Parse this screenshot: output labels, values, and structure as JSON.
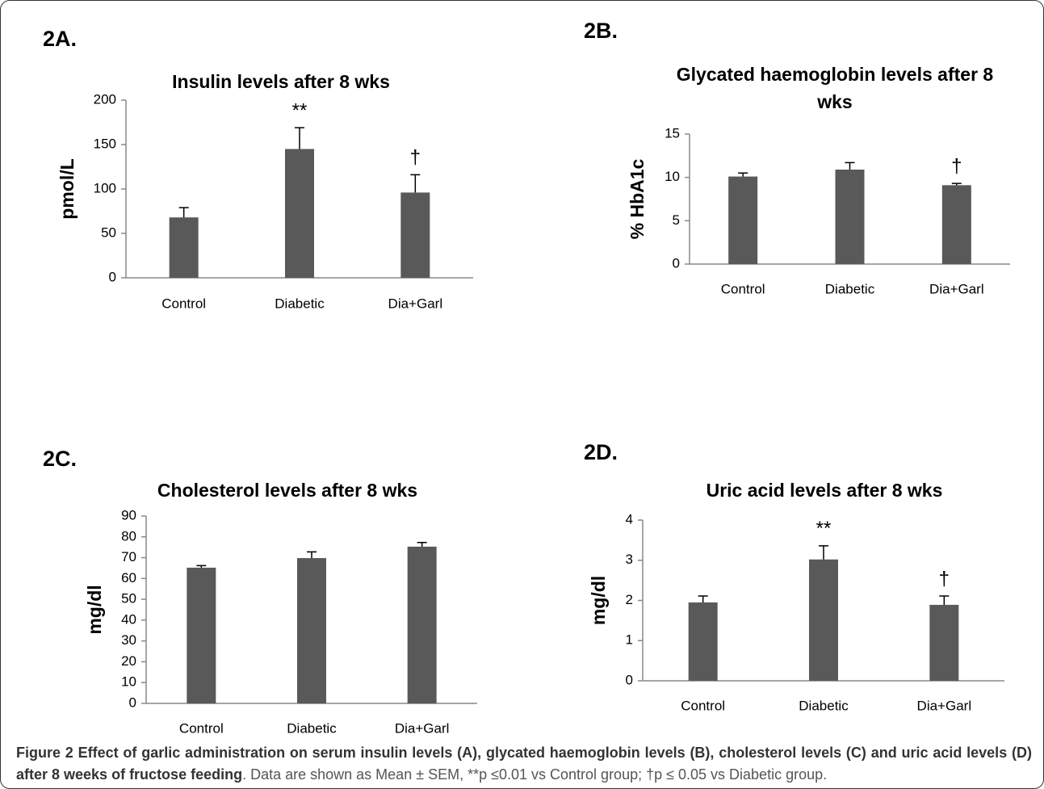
{
  "chart_data": [
    {
      "type": "bar",
      "label": "2A.",
      "title": "Insulin levels after 8 wks",
      "y_label": "pmol/L",
      "categories": [
        "Control",
        "Diabetic",
        "Dia+Garl"
      ],
      "values": [
        68,
        145,
        96
      ],
      "errors": [
        11,
        24,
        20
      ],
      "annotations": [
        null,
        "**",
        "†"
      ],
      "color": "#595959",
      "ylim": [
        0,
        200
      ],
      "yticks": [
        0,
        50,
        100,
        150,
        200
      ],
      "grid": false
    },
    {
      "type": "bar",
      "label": "2B.",
      "title": "Glycated haemoglobin levels after 8 wks",
      "y_label": "% HbA1c",
      "categories": [
        "Control",
        "Diabetic",
        "Dia+Garl"
      ],
      "values": [
        10.1,
        10.9,
        9.1
      ],
      "errors": [
        0.4,
        0.8,
        0.2
      ],
      "annotations": [
        null,
        null,
        "†"
      ],
      "color": "#595959",
      "ylim": [
        0,
        15
      ],
      "yticks": [
        0,
        5,
        10,
        15
      ],
      "grid": false
    },
    {
      "type": "bar",
      "label": "2C.",
      "title": "Cholesterol  levels after 8 wks",
      "y_label": "mg/dl",
      "categories": [
        "Control",
        "Diabetic",
        "Dia+Garl"
      ],
      "values": [
        65.2,
        69.8,
        75.3
      ],
      "errors": [
        1,
        3,
        2
      ],
      "annotations": [
        null,
        null,
        null
      ],
      "color": "#595959",
      "ylim": [
        0,
        90
      ],
      "yticks": [
        0,
        10,
        20,
        30,
        40,
        50,
        60,
        70,
        80,
        90
      ],
      "grid": false
    },
    {
      "type": "bar",
      "label": "2D.",
      "title": "Uric acid levels after 8 wks",
      "y_label": "mg/dl",
      "categories": [
        "Control",
        "Diabetic",
        "Dia+Garl"
      ],
      "values": [
        1.95,
        3.02,
        1.89
      ],
      "errors": [
        0.16,
        0.34,
        0.22
      ],
      "annotations": [
        null,
        "**",
        "†"
      ],
      "color": "#595959",
      "ylim": [
        0,
        4
      ],
      "yticks": [
        0,
        1,
        2,
        3,
        4
      ],
      "grid": false
    }
  ],
  "caption": {
    "bold": "Figure 2 Effect of garlic administration on serum insulin levels (A), glycated haemoglobin levels (B), cholesterol levels (C) and uric acid levels (D) after 8 weeks of fructose feeding",
    "text": ". Data are shown as Mean ± SEM, **p ≤0.01 vs Control group; †p ≤ 0.05 vs Diabetic group."
  }
}
